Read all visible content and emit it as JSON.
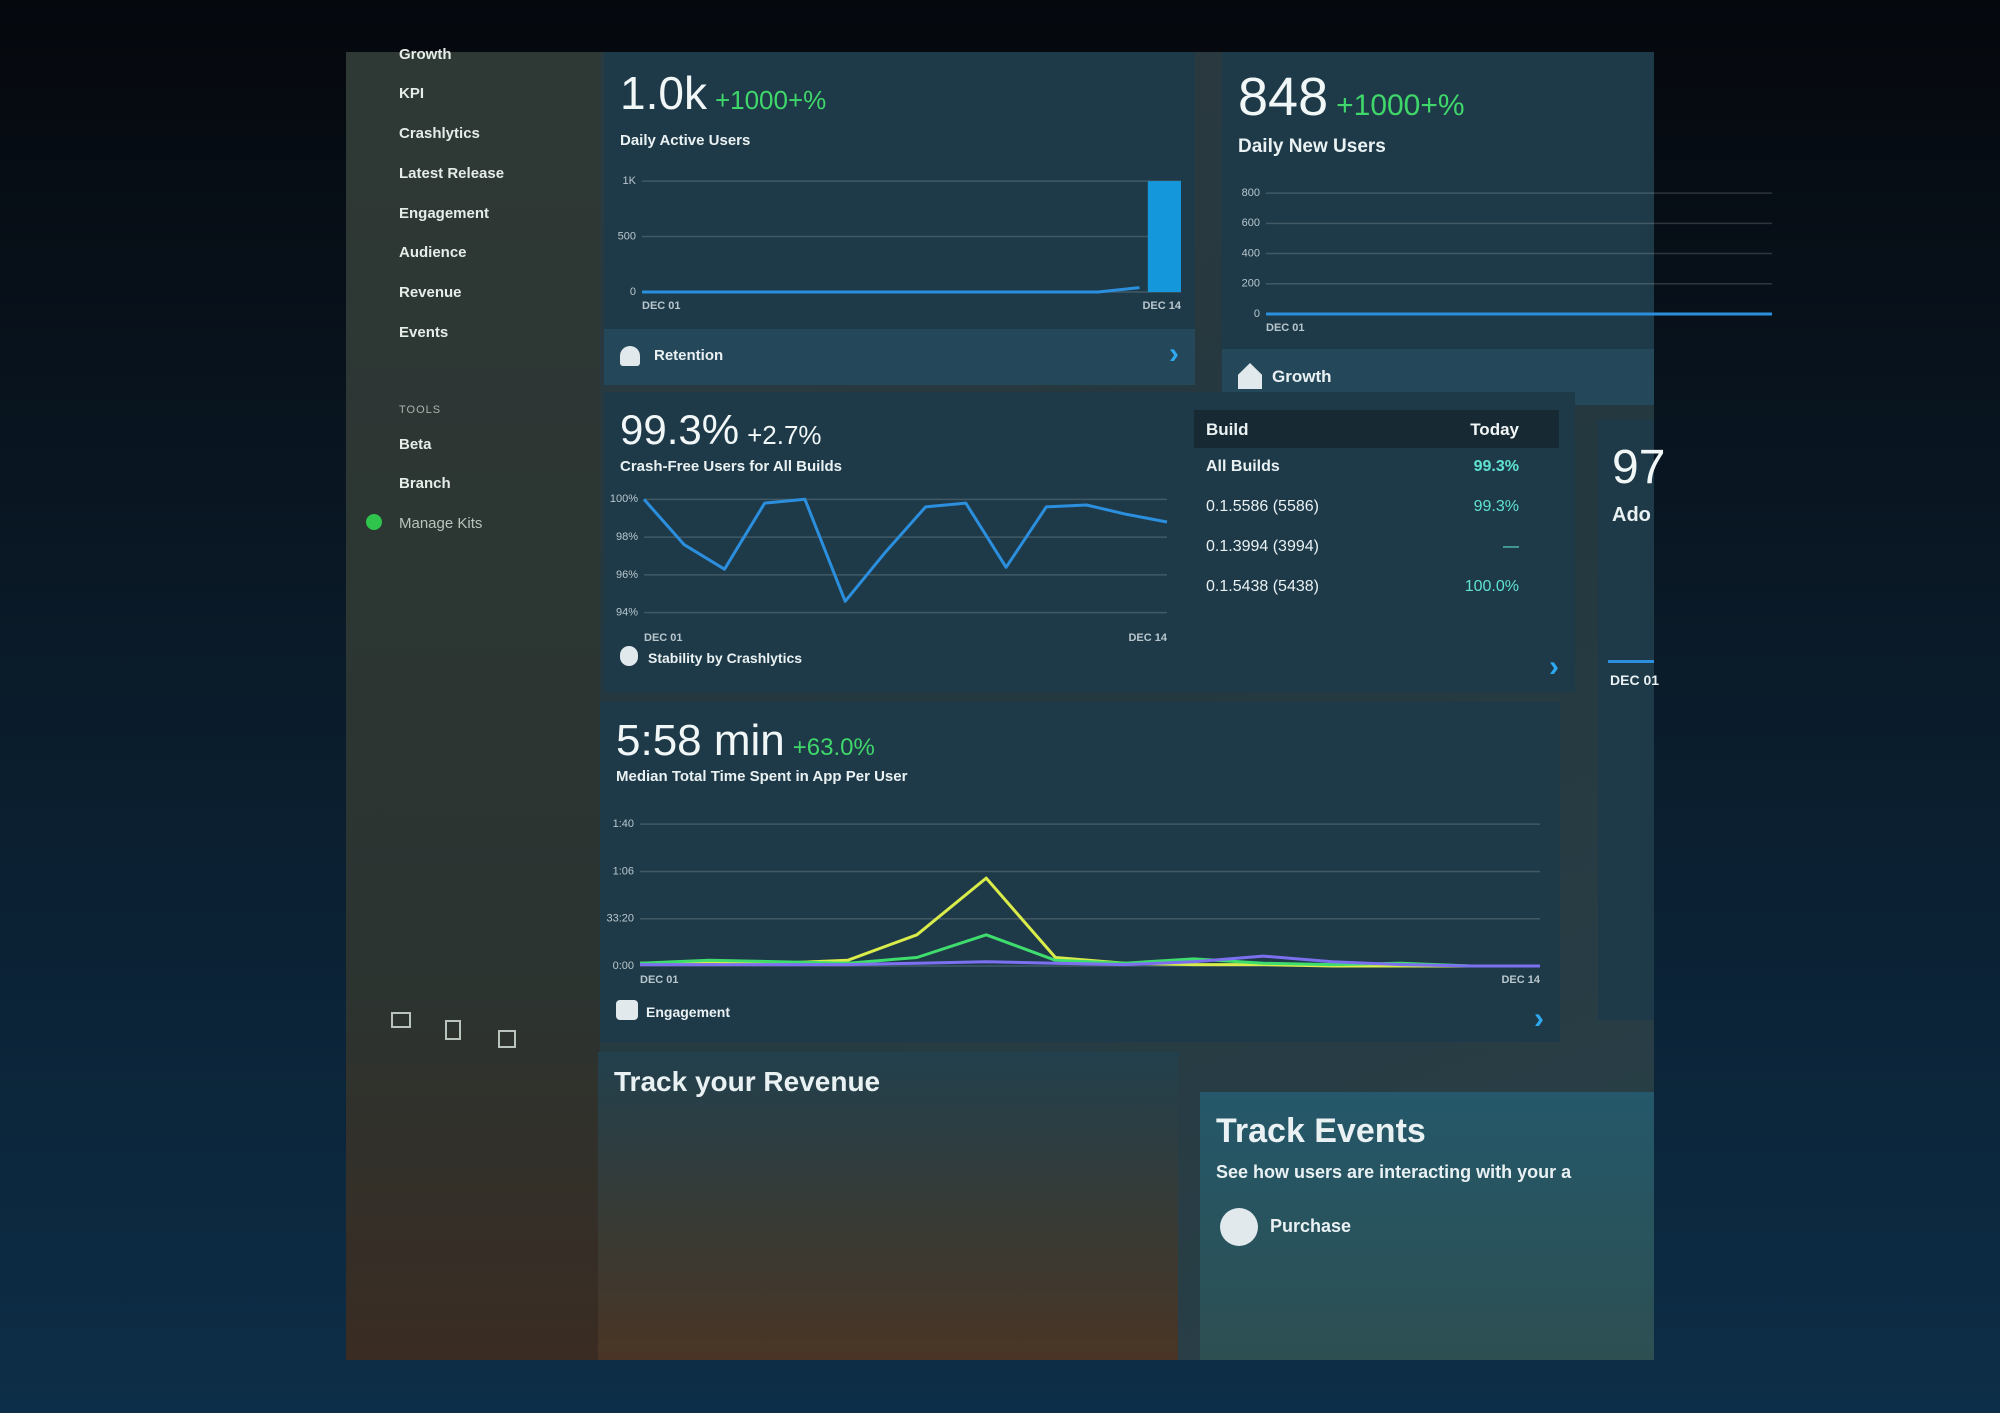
{
  "sidebar": {
    "items": [
      "Growth",
      "KPI",
      "Crashlytics",
      "Latest Release",
      "Engagement",
      "Audience",
      "Revenue",
      "Events"
    ],
    "tools_heading": "TOOLS",
    "tools": [
      "Beta",
      "Branch",
      "Manage Kits"
    ]
  },
  "cards": {
    "daily_active_users": {
      "value": "1.0k",
      "change": "+1000+%",
      "label": "Daily Active Users",
      "footer": "Retention",
      "chart": {
        "type": "line",
        "categories": [
          "DEC 01",
          null,
          null,
          null,
          null,
          null,
          null,
          null,
          null,
          null,
          null,
          null,
          null,
          "DEC 14"
        ],
        "values": [
          0,
          0,
          0,
          0,
          0,
          0,
          0,
          0,
          0,
          0,
          0,
          0,
          40,
          1000
        ],
        "color": "#2b8fde",
        "bar_color": "#1597dc",
        "last_as_bar": true,
        "ylim": [
          0,
          1100
        ],
        "yticks": [
          {
            "value": 1000,
            "label": "1K"
          },
          500,
          0
        ],
        "grid": true
      }
    },
    "daily_new_users": {
      "value": "848",
      "change": "+1000+%",
      "label": "Daily New Users",
      "footer": "Growth",
      "chart": {
        "type": "line",
        "categories": [
          "DEC 01",
          null,
          null,
          null,
          null,
          null,
          null,
          null
        ],
        "values": [
          0,
          0,
          0,
          0,
          0,
          0,
          0,
          0
        ],
        "color": "#2b8fde",
        "ylim": [
          0,
          900
        ],
        "yticks": [
          800,
          600,
          400,
          200,
          0
        ],
        "grid": true
      }
    },
    "stability": {
      "value": "99.3%",
      "change": "+2.7%",
      "label": "Crash-Free Users for All Builds",
      "footer": "Stability by Crashlytics",
      "chart": {
        "type": "line",
        "categories": [
          "DEC 01",
          null,
          null,
          null,
          null,
          null,
          null,
          null,
          null,
          null,
          null,
          null,
          null,
          "DEC 14"
        ],
        "values": [
          100,
          97.6,
          96.3,
          99.8,
          100,
          94.6,
          97.2,
          99.6,
          99.8,
          96.4,
          99.6,
          99.7,
          99.2,
          98.8
        ],
        "color": "#2b8fde",
        "ylim": [
          93.4,
          100.6
        ],
        "yticks": [
          {
            "value": 100,
            "label": "100%"
          },
          {
            "value": 98,
            "label": "98%"
          },
          {
            "value": 96,
            "label": "96%"
          },
          {
            "value": 94,
            "label": "94%"
          }
        ],
        "grid": true
      },
      "table": {
        "header": [
          "Build",
          "Today"
        ],
        "rows": [
          [
            "All Builds",
            "99.3%"
          ],
          [
            "0.1.5586 (5586)",
            "99.3%"
          ],
          [
            "0.1.3994 (3994)",
            "—"
          ],
          [
            "0.1.5438 (5438)",
            "100.0%"
          ]
        ]
      }
    },
    "adoption": {
      "value": "97",
      "label": "Ado",
      "x_label": "DEC 01"
    },
    "engagement": {
      "value": "5:58 min",
      "change": "+63.0%",
      "label": "Median Total Time Spent in App Per User",
      "footer": "Engagement",
      "chart": {
        "type": "line",
        "categories": [
          "DEC 01",
          null,
          null,
          null,
          null,
          null,
          null,
          null,
          null,
          null,
          null,
          null,
          null,
          "DEC 14"
        ],
        "series": [
          {
            "color": "#d9ec4a",
            "values": [
              2,
              3,
              2,
              4,
              22,
              62,
              6,
              2,
              1,
              1,
              0,
              0,
              0,
              0
            ]
          },
          {
            "color": "#3fdc6e",
            "values": [
              2,
              4,
              3,
              2,
              6,
              22,
              4,
              2,
              5,
              2,
              1,
              2,
              0,
              0
            ]
          },
          {
            "color": "#7c6ff0",
            "values": [
              1,
              1,
              1,
              1,
              2,
              3,
              2,
              1,
              3,
              7,
              3,
              1,
              0,
              0
            ]
          }
        ],
        "ylim": [
          0,
          110
        ],
        "yticks": [
          {
            "value": 100,
            "label": "1:40"
          },
          {
            "value": 66.67,
            "label": "1:06"
          },
          {
            "value": 33.33,
            "label": "33:20"
          },
          {
            "value": 0,
            "label": "0:00"
          }
        ],
        "grid": true
      }
    },
    "revenue": {
      "title": "Track your Revenue"
    },
    "events": {
      "title": "Track Events",
      "subtitle": "See how users are interacting with your a",
      "item": "Purchase"
    }
  }
}
